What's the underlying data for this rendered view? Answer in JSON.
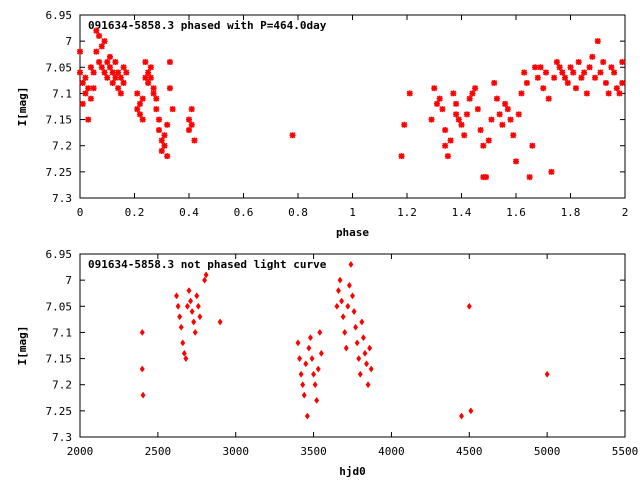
{
  "chart_data": [
    {
      "type": "scatter",
      "title": "091634-5858.3 phased with P=464.0day",
      "xlabel": "phase",
      "ylabel": "I[mag]",
      "xlim": [
        0,
        2
      ],
      "ylim": [
        6.95,
        7.3
      ],
      "y_inverted": true,
      "xticks": [
        "0",
        "0.2",
        "0.4",
        "0.6",
        "0.8",
        "1",
        "1.2",
        "1.4",
        "1.6",
        "1.8",
        "2"
      ],
      "yticks": [
        "6.95",
        "7",
        "7.05",
        "7.1",
        "7.15",
        "7.2",
        "7.25",
        "7.3"
      ],
      "grid": false,
      "marker": "asterisk",
      "color": "#ff0000",
      "points": [
        [
          0.0,
          7.02
        ],
        [
          0.0,
          7.06
        ],
        [
          0.01,
          7.08
        ],
        [
          0.01,
          7.12
        ],
        [
          0.02,
          7.1
        ],
        [
          0.02,
          7.07
        ],
        [
          0.03,
          7.15
        ],
        [
          0.03,
          7.09
        ],
        [
          0.04,
          7.11
        ],
        [
          0.04,
          7.05
        ],
        [
          0.05,
          7.06
        ],
        [
          0.05,
          7.09
        ],
        [
          0.06,
          7.02
        ],
        [
          0.06,
          6.98
        ],
        [
          0.07,
          6.99
        ],
        [
          0.07,
          7.04
        ],
        [
          0.08,
          7.01
        ],
        [
          0.08,
          7.05
        ],
        [
          0.09,
          7.0
        ],
        [
          0.09,
          7.06
        ],
        [
          0.1,
          7.04
        ],
        [
          0.1,
          7.07
        ],
        [
          0.11,
          7.03
        ],
        [
          0.11,
          7.05
        ],
        [
          0.12,
          7.06
        ],
        [
          0.12,
          7.08
        ],
        [
          0.13,
          7.04
        ],
        [
          0.13,
          7.07
        ],
        [
          0.14,
          7.06
        ],
        [
          0.14,
          7.09
        ],
        [
          0.15,
          7.1
        ],
        [
          0.15,
          7.07
        ],
        [
          0.16,
          7.05
        ],
        [
          0.16,
          7.08
        ],
        [
          0.17,
          7.06
        ],
        [
          0.21,
          7.1
        ],
        [
          0.21,
          7.13
        ],
        [
          0.22,
          7.12
        ],
        [
          0.22,
          7.14
        ],
        [
          0.23,
          7.15
        ],
        [
          0.23,
          7.11
        ],
        [
          0.24,
          7.07
        ],
        [
          0.24,
          7.04
        ],
        [
          0.25,
          7.06
        ],
        [
          0.25,
          7.08
        ],
        [
          0.26,
          7.05
        ],
        [
          0.26,
          7.07
        ],
        [
          0.27,
          7.09
        ],
        [
          0.27,
          7.1
        ],
        [
          0.28,
          7.11
        ],
        [
          0.28,
          7.13
        ],
        [
          0.29,
          7.15
        ],
        [
          0.29,
          7.17
        ],
        [
          0.3,
          7.19
        ],
        [
          0.3,
          7.21
        ],
        [
          0.31,
          7.18
        ],
        [
          0.31,
          7.2
        ],
        [
          0.32,
          7.22
        ],
        [
          0.32,
          7.16
        ],
        [
          0.33,
          7.04
        ],
        [
          0.33,
          7.09
        ],
        [
          0.34,
          7.13
        ],
        [
          0.4,
          7.15
        ],
        [
          0.4,
          7.17
        ],
        [
          0.41,
          7.13
        ],
        [
          0.41,
          7.16
        ],
        [
          0.42,
          7.19
        ],
        [
          0.78,
          7.18
        ],
        [
          1.18,
          7.22
        ],
        [
          1.19,
          7.16
        ],
        [
          1.21,
          7.1
        ],
        [
          1.29,
          7.15
        ],
        [
          1.3,
          7.09
        ],
        [
          1.31,
          7.12
        ],
        [
          1.32,
          7.11
        ],
        [
          1.33,
          7.13
        ],
        [
          1.34,
          7.17
        ],
        [
          1.34,
          7.2
        ],
        [
          1.35,
          7.22
        ],
        [
          1.36,
          7.19
        ],
        [
          1.37,
          7.1
        ],
        [
          1.38,
          7.12
        ],
        [
          1.38,
          7.14
        ],
        [
          1.39,
          7.15
        ],
        [
          1.4,
          7.16
        ],
        [
          1.41,
          7.18
        ],
        [
          1.42,
          7.14
        ],
        [
          1.43,
          7.11
        ],
        [
          1.44,
          7.1
        ],
        [
          1.45,
          7.09
        ],
        [
          1.46,
          7.13
        ],
        [
          1.47,
          7.17
        ],
        [
          1.48,
          7.2
        ],
        [
          1.48,
          7.26
        ],
        [
          1.49,
          7.26
        ],
        [
          1.5,
          7.19
        ],
        [
          1.51,
          7.15
        ],
        [
          1.52,
          7.08
        ],
        [
          1.53,
          7.11
        ],
        [
          1.54,
          7.14
        ],
        [
          1.55,
          7.16
        ],
        [
          1.56,
          7.12
        ],
        [
          1.57,
          7.13
        ],
        [
          1.58,
          7.15
        ],
        [
          1.59,
          7.18
        ],
        [
          1.6,
          7.23
        ],
        [
          1.61,
          7.14
        ],
        [
          1.62,
          7.1
        ],
        [
          1.63,
          7.06
        ],
        [
          1.64,
          7.08
        ],
        [
          1.65,
          7.26
        ],
        [
          1.66,
          7.2
        ],
        [
          1.67,
          7.05
        ],
        [
          1.68,
          7.07
        ],
        [
          1.69,
          7.05
        ],
        [
          1.7,
          7.09
        ],
        [
          1.71,
          7.06
        ],
        [
          1.72,
          7.11
        ],
        [
          1.73,
          7.25
        ],
        [
          1.74,
          7.07
        ],
        [
          1.75,
          7.04
        ],
        [
          1.76,
          7.05
        ],
        [
          1.77,
          7.06
        ],
        [
          1.78,
          7.07
        ],
        [
          1.79,
          7.08
        ],
        [
          1.8,
          7.05
        ],
        [
          1.81,
          7.06
        ],
        [
          1.82,
          7.09
        ],
        [
          1.83,
          7.04
        ],
        [
          1.84,
          7.07
        ],
        [
          1.85,
          7.06
        ],
        [
          1.86,
          7.1
        ],
        [
          1.87,
          7.05
        ],
        [
          1.88,
          7.03
        ],
        [
          1.89,
          7.07
        ],
        [
          1.9,
          7.0
        ],
        [
          1.91,
          7.06
        ],
        [
          1.92,
          7.04
        ],
        [
          1.93,
          7.08
        ],
        [
          1.94,
          7.1
        ],
        [
          1.95,
          7.05
        ],
        [
          1.96,
          7.06
        ],
        [
          1.97,
          7.09
        ],
        [
          1.98,
          7.1
        ],
        [
          1.99,
          7.04
        ],
        [
          1.99,
          7.08
        ]
      ]
    },
    {
      "type": "scatter",
      "title": "091634-5858.3 not phased light curve",
      "xlabel": "hjd0",
      "ylabel": "I[mag]",
      "xlim": [
        2000,
        5500
      ],
      "ylim": [
        6.95,
        7.3
      ],
      "y_inverted": true,
      "xticks": [
        "2000",
        "2500",
        "3000",
        "3500",
        "4000",
        "4500",
        "5000",
        "5500"
      ],
      "yticks": [
        "6.95",
        "7",
        "7.05",
        "7.1",
        "7.15",
        "7.2",
        "7.25",
        "7.3"
      ],
      "grid": false,
      "marker": "diamond",
      "color": "#ff0000",
      "points": [
        [
          2400,
          7.1
        ],
        [
          2400,
          7.17
        ],
        [
          2405,
          7.22
        ],
        [
          2620,
          7.03
        ],
        [
          2630,
          7.05
        ],
        [
          2640,
          7.07
        ],
        [
          2650,
          7.09
        ],
        [
          2660,
          7.12
        ],
        [
          2670,
          7.14
        ],
        [
          2680,
          7.15
        ],
        [
          2690,
          7.05
        ],
        [
          2700,
          7.02
        ],
        [
          2710,
          7.04
        ],
        [
          2720,
          7.06
        ],
        [
          2730,
          7.08
        ],
        [
          2740,
          7.1
        ],
        [
          2750,
          7.03
        ],
        [
          2760,
          7.05
        ],
        [
          2770,
          7.07
        ],
        [
          2800,
          7.0
        ],
        [
          2810,
          6.99
        ],
        [
          2900,
          7.08
        ],
        [
          3400,
          7.12
        ],
        [
          3410,
          7.15
        ],
        [
          3420,
          7.18
        ],
        [
          3430,
          7.2
        ],
        [
          3440,
          7.22
        ],
        [
          3450,
          7.16
        ],
        [
          3460,
          7.26
        ],
        [
          3470,
          7.13
        ],
        [
          3480,
          7.11
        ],
        [
          3490,
          7.15
        ],
        [
          3500,
          7.18
        ],
        [
          3510,
          7.2
        ],
        [
          3520,
          7.23
        ],
        [
          3530,
          7.17
        ],
        [
          3540,
          7.1
        ],
        [
          3550,
          7.14
        ],
        [
          3650,
          7.05
        ],
        [
          3660,
          7.02
        ],
        [
          3670,
          7.0
        ],
        [
          3680,
          7.04
        ],
        [
          3690,
          7.07
        ],
        [
          3700,
          7.1
        ],
        [
          3710,
          7.13
        ],
        [
          3720,
          7.05
        ],
        [
          3730,
          7.01
        ],
        [
          3740,
          6.97
        ],
        [
          3750,
          7.03
        ],
        [
          3760,
          7.06
        ],
        [
          3770,
          7.09
        ],
        [
          3780,
          7.12
        ],
        [
          3790,
          7.15
        ],
        [
          3800,
          7.18
        ],
        [
          3810,
          7.08
        ],
        [
          3820,
          7.11
        ],
        [
          3830,
          7.14
        ],
        [
          3840,
          7.16
        ],
        [
          3850,
          7.2
        ],
        [
          3860,
          7.13
        ],
        [
          3870,
          7.17
        ],
        [
          4450,
          7.26
        ],
        [
          4500,
          7.05
        ],
        [
          4510,
          7.25
        ],
        [
          5000,
          7.18
        ]
      ]
    }
  ]
}
